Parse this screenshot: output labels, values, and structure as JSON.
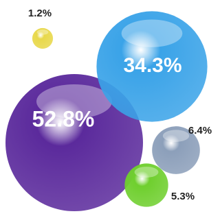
{
  "chart_data": {
    "type": "bubble",
    "values": [
      52.8,
      34.3,
      6.4,
      5.3,
      1.2
    ],
    "value_labels": [
      "52.8%",
      "34.3%",
      "6.4%",
      "5.3%",
      "1.2%"
    ],
    "colors": [
      "#5b2a9c",
      "#3aa3e8",
      "#8c9fba",
      "#6fcf2e",
      "#e8d84a"
    ]
  }
}
